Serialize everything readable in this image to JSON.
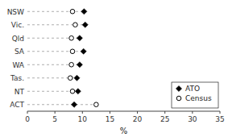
{
  "chart_data": {
    "type": "dot",
    "xlabel": "%",
    "categories": [
      "NSW",
      "Vic.",
      "Qld",
      "SA",
      "WA",
      "Tas.",
      "NT",
      "ACT"
    ],
    "series": [
      {
        "name": "ATO",
        "color": "#000000",
        "marker": "diamond",
        "values": [
          10.3,
          10.5,
          9.5,
          10.2,
          9.5,
          9.0,
          9.2,
          8.5
        ]
      },
      {
        "name": "Census",
        "color": "#000000",
        "marker": "open-circle",
        "values": [
          8.2,
          8.7,
          8.0,
          8.2,
          8.0,
          7.8,
          8.2,
          12.5
        ]
      }
    ],
    "xlim": [
      0,
      35
    ],
    "xticks": [
      0,
      5,
      10,
      15,
      20,
      25,
      30,
      35
    ],
    "grid": false,
    "legend": "lower right"
  }
}
